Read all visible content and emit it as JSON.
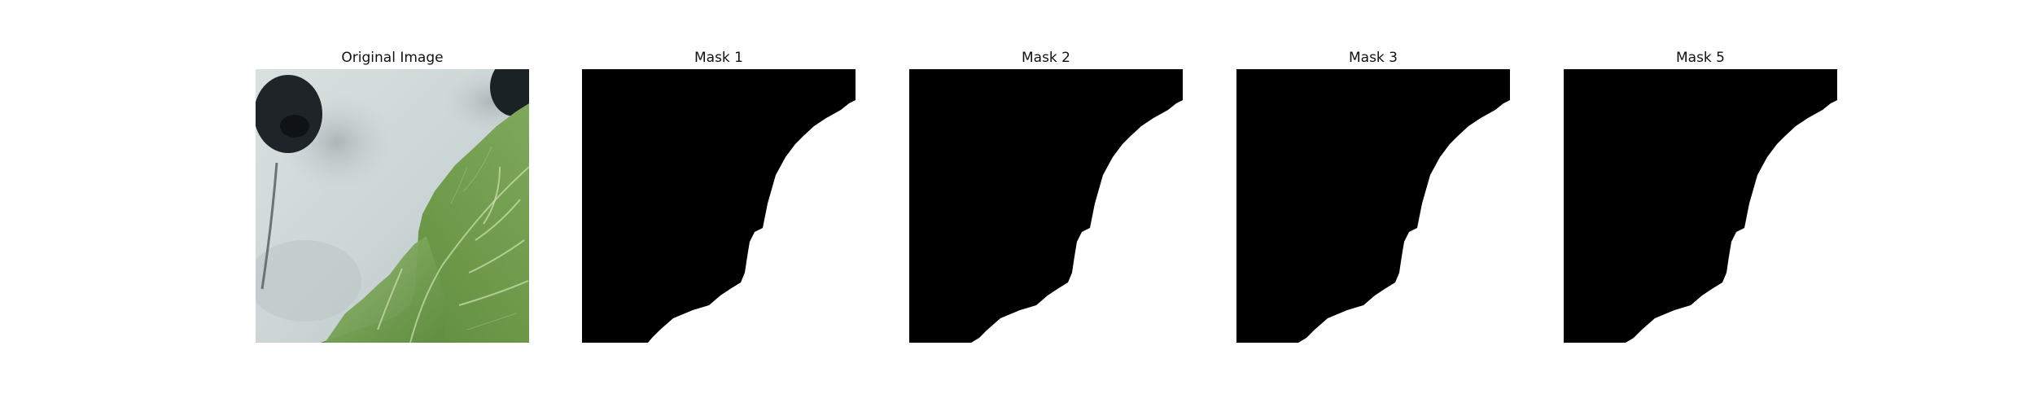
{
  "figure": {
    "panels": [
      {
        "title": "Original Image",
        "kind": "photo"
      },
      {
        "title": "Mask 1",
        "kind": "mask"
      },
      {
        "title": "Mask 2",
        "kind": "mask"
      },
      {
        "title": "Mask 3",
        "kind": "mask"
      },
      {
        "title": "Mask 5",
        "kind": "mask"
      }
    ]
  },
  "colors": {
    "mask_background": "#000000",
    "mask_foreground": "#ffffff",
    "leaf_green": "#6f9a4c"
  }
}
